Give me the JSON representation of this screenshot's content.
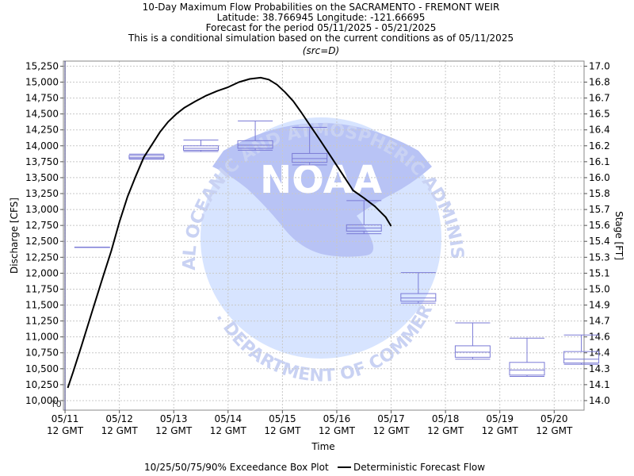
{
  "chart_data": {
    "type": "box",
    "title_lines": [
      "10-Day Maximum Flow Probabilities on the SACRAMENTO - FREMONT WEIR",
      "Latitude: 38.766945 Longitude: -121.66695",
      "Forecast for the period 05/11/2025 - 05/21/2025",
      "This is a conditional simulation based on the current conditions as of 05/11/2025"
    ],
    "subtitle": "(src=D)",
    "xlabel": "Time",
    "ylabel": "Discharge [CFS]",
    "y2label": "Stage [FT]",
    "ylim": [
      9850,
      15330
    ],
    "y_ticks": [
      10000,
      10250,
      10500,
      10750,
      11000,
      11250,
      11500,
      11750,
      12000,
      12250,
      12500,
      12750,
      13000,
      13250,
      13500,
      13750,
      14000,
      14250,
      14500,
      14750,
      15000,
      15250
    ],
    "y2_ticks": [
      {
        "label": "14.0",
        "flow": 10000
      },
      {
        "label": "14.1",
        "flow": 10250
      },
      {
        "label": "14.3",
        "flow": 10500
      },
      {
        "label": "14.4",
        "flow": 10750
      },
      {
        "label": "14.6",
        "flow": 11000
      },
      {
        "label": "14.7",
        "flow": 11250
      },
      {
        "label": "14.9",
        "flow": 11500
      },
      {
        "label": "15.0",
        "flow": 11750
      },
      {
        "label": "15.1",
        "flow": 12000
      },
      {
        "label": "15.3",
        "flow": 12250
      },
      {
        "label": "15.4",
        "flow": 12500
      },
      {
        "label": "15.6",
        "flow": 12750
      },
      {
        "label": "15.7",
        "flow": 13000
      },
      {
        "label": "15.8",
        "flow": 13250
      },
      {
        "label": "16.0",
        "flow": 13500
      },
      {
        "label": "16.1",
        "flow": 13750
      },
      {
        "label": "16.2",
        "flow": 14000
      },
      {
        "label": "16.4",
        "flow": 14250
      },
      {
        "label": "16.5",
        "flow": 14500
      },
      {
        "label": "16.7",
        "flow": 14750
      },
      {
        "label": "16.8",
        "flow": 15000
      },
      {
        "label": "17.0",
        "flow": 15250
      }
    ],
    "xlim": [
      -0.03,
      9.55
    ],
    "x_ticks": [
      {
        "day": 0,
        "date": "05/11",
        "time": "12 GMT"
      },
      {
        "day": 1,
        "date": "05/12",
        "time": "12 GMT"
      },
      {
        "day": 2,
        "date": "05/13",
        "time": "12 GMT"
      },
      {
        "day": 3,
        "date": "05/14",
        "time": "12 GMT"
      },
      {
        "day": 4,
        "date": "05/15",
        "time": "12 GMT"
      },
      {
        "day": 5,
        "date": "05/16",
        "time": "12 GMT"
      },
      {
        "day": 6,
        "date": "05/17",
        "time": "12 GMT"
      },
      {
        "day": 7,
        "date": "05/18",
        "time": "12 GMT"
      },
      {
        "day": 8,
        "date": "05/19",
        "time": "12 GMT"
      },
      {
        "day": 9,
        "date": "05/20",
        "time": "12 GMT"
      }
    ],
    "t0_label": "T0",
    "t0_day": 0,
    "boxes": [
      {
        "day": 0.5,
        "p10": 12410,
        "p25": 12410,
        "p50": 12410,
        "p75": 12410,
        "p90": 12410
      },
      {
        "day": 1.5,
        "p10": 13790,
        "p25": 13800,
        "p50": 13820,
        "p75": 13850,
        "p90": 13870
      },
      {
        "day": 2.5,
        "p10": 13910,
        "p25": 13930,
        "p50": 13960,
        "p75": 14000,
        "p90": 14090
      },
      {
        "day": 3.5,
        "p10": 13930,
        "p25": 13960,
        "p50": 14010,
        "p75": 14080,
        "p90": 14390
      },
      {
        "day": 4.5,
        "p10": 13700,
        "p25": 13740,
        "p50": 13800,
        "p75": 13880,
        "p90": 14290
      },
      {
        "day": 5.5,
        "p10": 12620,
        "p25": 12660,
        "p50": 12710,
        "p75": 12760,
        "p90": 13140
      },
      {
        "day": 6.5,
        "p10": 11530,
        "p25": 11560,
        "p50": 11610,
        "p75": 11680,
        "p90": 12010
      },
      {
        "day": 7.5,
        "p10": 10650,
        "p25": 10680,
        "p50": 10760,
        "p75": 10860,
        "p90": 11220
      },
      {
        "day": 8.5,
        "p10": 10380,
        "p25": 10400,
        "p50": 10480,
        "p75": 10600,
        "p90": 10980
      },
      {
        "day": 9.5,
        "p10": 10570,
        "p25": 10590,
        "p50": 10650,
        "p75": 10770,
        "p90": 11030
      }
    ],
    "deterministic": {
      "x": [
        0.05,
        0.15,
        0.3,
        0.5,
        0.7,
        0.85,
        1.0,
        1.15,
        1.3,
        1.45,
        1.6,
        1.75,
        1.9,
        2.05,
        2.2,
        2.4,
        2.6,
        2.8,
        3.0,
        3.2,
        3.4,
        3.6,
        3.75,
        3.9,
        4.05,
        4.2,
        4.35,
        4.5,
        4.7,
        4.9,
        5.1,
        5.3,
        5.5,
        5.7,
        5.9,
        6.0
      ],
      "y": [
        10200,
        10450,
        10850,
        11400,
        11950,
        12350,
        12800,
        13200,
        13520,
        13820,
        14020,
        14220,
        14380,
        14500,
        14600,
        14700,
        14790,
        14860,
        14920,
        15000,
        15050,
        15070,
        15040,
        14960,
        14840,
        14700,
        14520,
        14330,
        14080,
        13820,
        13560,
        13300,
        13180,
        13050,
        12880,
        12740
      ]
    },
    "legend": {
      "box_label": "10/25/50/75/90% Exceedance Box Plot",
      "line_label": "Deterministic Forecast Flow",
      "placement": "bottom"
    },
    "grid": true,
    "colors": {
      "box": "#7b7bd6",
      "line": "#000000",
      "grid": "#c8c8c8",
      "t0_line": "#3a3a7a",
      "watermark_light": "#d7e4ff",
      "watermark_dark": "#b8c3f5"
    },
    "watermark": {
      "brand": "NOAA",
      "ring_top": "NATIONAL OCEANIC AND ATMOSPHERIC ADMINISTRATION",
      "ring_bottom": "U.S. DEPARTMENT OF COMMERCE"
    }
  }
}
